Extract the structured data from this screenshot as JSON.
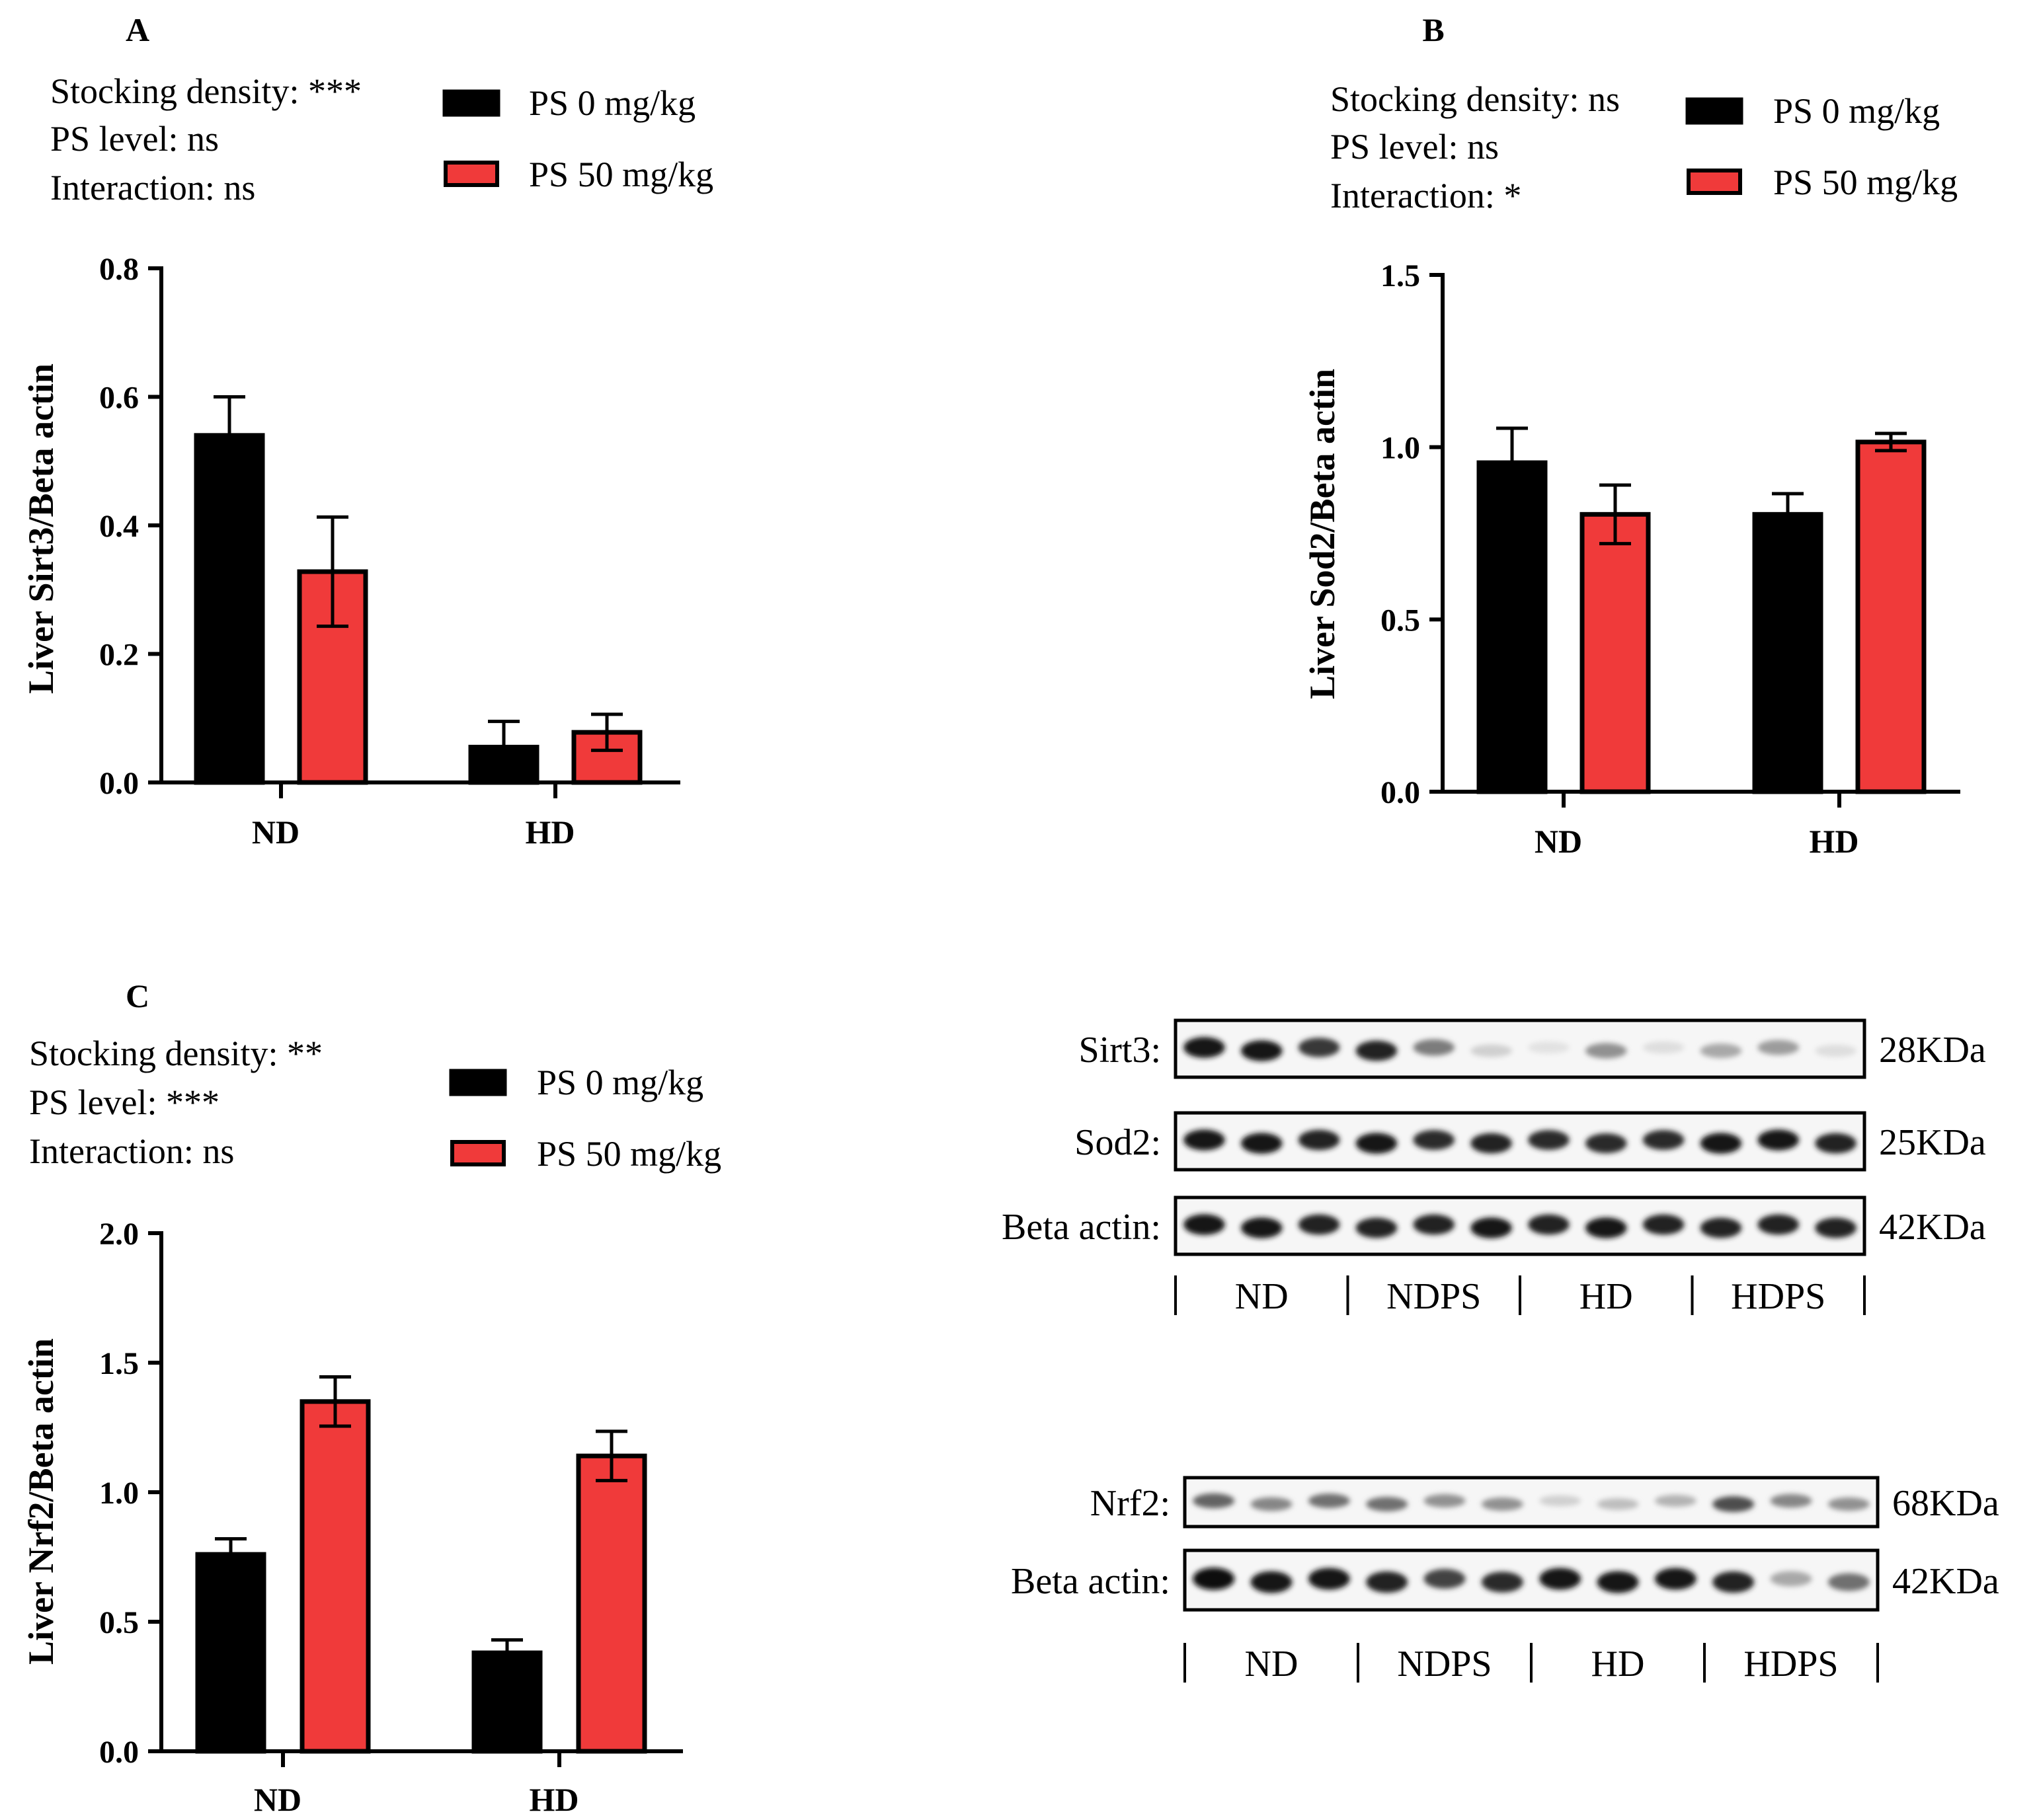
{
  "chart_data": [
    {
      "panel": "A",
      "type": "bar",
      "categories": [
        "ND",
        "HD"
      ],
      "series": [
        {
          "name": "PS 0 mg/kg",
          "color": "#000000",
          "values": [
            0.54,
            0.055
          ],
          "errors": [
            0.06,
            0.04
          ]
        },
        {
          "name": "PS 50 mg/kg",
          "color": "#f03a3a",
          "values": [
            0.328,
            0.078
          ],
          "errors": [
            0.085,
            0.028
          ]
        }
      ],
      "stats": [
        "Stocking density: ***",
        "PS level: ns",
        "Interaction: ns"
      ],
      "ylabel": "Liver Sirt3/Beta actin",
      "ylim": [
        0,
        0.8
      ],
      "yticks": [
        0.0,
        0.2,
        0.4,
        0.6,
        0.8
      ],
      "ytick_labels": [
        "0.0",
        "0.2",
        "0.4",
        "0.6",
        "0.8"
      ]
    },
    {
      "panel": "B",
      "type": "bar",
      "categories": [
        "ND",
        "HD"
      ],
      "series": [
        {
          "name": "PS 0 mg/kg",
          "color": "#000000",
          "values": [
            0.955,
            0.805
          ],
          "errors": [
            0.1,
            0.06
          ]
        },
        {
          "name": "PS 50 mg/kg",
          "color": "#f03a3a",
          "values": [
            0.805,
            1.015
          ],
          "errors": [
            0.085,
            0.025
          ]
        }
      ],
      "stats": [
        "Stocking density: ns",
        "PS level: ns",
        "Interaction: *"
      ],
      "ylabel": "Liver Sod2/Beta actin",
      "ylim": [
        0,
        1.5
      ],
      "yticks": [
        0.0,
        0.5,
        1.0,
        1.5
      ],
      "ytick_labels": [
        "0.0",
        "0.5",
        "1.0",
        "1.5"
      ]
    },
    {
      "panel": "C",
      "type": "bar",
      "categories": [
        "ND",
        "HD"
      ],
      "series": [
        {
          "name": "PS 0 mg/kg",
          "color": "#000000",
          "values": [
            0.76,
            0.38
          ],
          "errors": [
            0.06,
            0.05
          ]
        },
        {
          "name": "PS 50 mg/kg",
          "color": "#f03a3a",
          "values": [
            1.35,
            1.14
          ],
          "errors": [
            0.095,
            0.095
          ]
        }
      ],
      "stats": [
        "Stocking density: **",
        "PS level: ***",
        "Interaction: ns"
      ],
      "ylabel": "Liver Nrf2/Beta actin",
      "ylim": [
        0,
        2.0
      ],
      "yticks": [
        0.0,
        0.5,
        1.0,
        1.5,
        2.0
      ],
      "ytick_labels": [
        "0.0",
        "0.5",
        "1.0",
        "1.5",
        "2.0"
      ]
    }
  ],
  "blots": {
    "top": {
      "rows": [
        {
          "label": "Sirt3:",
          "kda": "28KDa",
          "bands": [
            0.95,
            0.95,
            0.8,
            0.9,
            0.5,
            0.12,
            0.04,
            0.4,
            0.06,
            0.3,
            0.35,
            0.06
          ]
        },
        {
          "label": "Sod2:",
          "kda": "25KDa",
          "bands": [
            0.95,
            0.95,
            0.9,
            0.95,
            0.85,
            0.9,
            0.85,
            0.85,
            0.85,
            0.95,
            0.95,
            0.9
          ]
        },
        {
          "label": "Beta actin:",
          "kda": "42KDa",
          "bands": [
            0.95,
            0.95,
            0.9,
            0.9,
            0.9,
            0.95,
            0.9,
            0.95,
            0.9,
            0.9,
            0.9,
            0.9
          ]
        }
      ],
      "groups": [
        "ND",
        "NDPS",
        "HD",
        "HDPS"
      ]
    },
    "bottom": {
      "rows": [
        {
          "label": "Nrf2:",
          "kda": "68KDa",
          "bands": [
            0.6,
            0.45,
            0.55,
            0.55,
            0.4,
            0.4,
            0.12,
            0.2,
            0.25,
            0.7,
            0.45,
            0.4
          ]
        },
        {
          "label": "Beta actin:",
          "kda": "42KDa",
          "bands": [
            1.0,
            0.95,
            0.95,
            0.9,
            0.75,
            0.85,
            0.95,
            0.95,
            0.95,
            0.9,
            0.3,
            0.55
          ]
        }
      ],
      "groups": [
        "ND",
        "NDPS",
        "HD",
        "HDPS"
      ]
    }
  }
}
